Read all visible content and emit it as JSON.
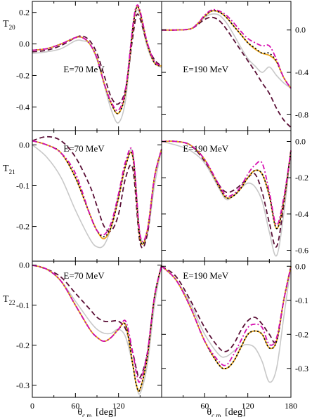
{
  "chart_data": {
    "type": "line",
    "x_axis": {
      "label": "θ",
      "label_sub": "c.m.",
      "label_unit": "[deg]",
      "range": [
        0,
        180
      ],
      "ticks": [
        0,
        60,
        120,
        180
      ],
      "tick_labels_left": [
        "0",
        "60",
        "120"
      ],
      "tick_labels_right": [
        "60",
        "120",
        "180"
      ]
    },
    "series_styles": [
      {
        "color": "#c8c8c8",
        "dash": "none"
      },
      {
        "color": "#5a0f36",
        "dash": "7,4"
      },
      {
        "color": "#e8a317",
        "dash": "none"
      },
      {
        "color": "#000000",
        "dash": "2,3"
      },
      {
        "color": "#d60fb0",
        "dash": "7,3,2,3"
      }
    ],
    "rows": [
      {
        "ylabel": "T",
        "ylabel_sub": "20",
        "panels": [
          {
            "energy": "E=70 MeV",
            "ylim": [
              -0.55,
              0.27
            ],
            "yticks": [
              0.2,
              0.0,
              -0.2,
              -0.4
            ],
            "ytick_labels": [
              "0.2",
              "0.0",
              "-0.2",
              "-0.4"
            ],
            "ytick_side": "left",
            "x": [
              0,
              20,
              40,
              60,
              70,
              80,
              90,
              100,
              110,
              120,
              130,
              140,
              145,
              150,
              160,
              170,
              180
            ],
            "series": [
              [
                -0.06,
                -0.05,
                -0.03,
                0.02,
                0.02,
                0.0,
                -0.1,
                -0.26,
                -0.42,
                -0.5,
                -0.35,
                0.1,
                0.21,
                0.18,
                -0.02,
                -0.12,
                -0.15
              ],
              [
                -0.05,
                -0.04,
                -0.01,
                0.04,
                0.05,
                0.02,
                -0.06,
                -0.2,
                -0.34,
                -0.38,
                -0.28,
                0.05,
                0.18,
                0.16,
                0.0,
                -0.1,
                -0.14
              ],
              [
                -0.04,
                -0.03,
                0.0,
                0.04,
                0.04,
                0.0,
                -0.09,
                -0.25,
                -0.38,
                -0.44,
                -0.3,
                0.1,
                0.23,
                0.2,
                0.0,
                -0.12,
                -0.14
              ],
              [
                -0.04,
                -0.03,
                0.0,
                0.04,
                0.04,
                0.0,
                -0.09,
                -0.25,
                -0.38,
                -0.44,
                -0.3,
                0.1,
                0.23,
                0.2,
                0.0,
                -0.12,
                -0.14
              ],
              [
                -0.04,
                -0.03,
                0.0,
                0.04,
                0.04,
                0.0,
                -0.09,
                -0.25,
                -0.37,
                -0.42,
                -0.28,
                0.12,
                0.24,
                0.21,
                0.01,
                -0.11,
                -0.14
              ]
            ]
          },
          {
            "energy": "E=190 MeV",
            "ylim": [
              -0.95,
              0.27
            ],
            "yticks": [
              0.0,
              -0.4,
              -0.8
            ],
            "ytick_labels": [
              "0.0",
              "-0.4",
              "-0.8"
            ],
            "ytick_side": "right",
            "x": [
              0,
              20,
              40,
              50,
              60,
              70,
              80,
              90,
              100,
              110,
              120,
              130,
              140,
              150,
              160,
              170,
              180
            ],
            "series": [
              [
                0.0,
                0.0,
                0.01,
                0.05,
                0.12,
                0.15,
                0.14,
                0.07,
                -0.04,
                -0.16,
                -0.27,
                -0.34,
                -0.4,
                -0.35,
                -0.43,
                -0.5,
                -0.55
              ],
              [
                0.0,
                0.0,
                0.01,
                0.05,
                0.1,
                0.12,
                0.09,
                0.01,
                -0.09,
                -0.19,
                -0.29,
                -0.39,
                -0.5,
                -0.6,
                -0.74,
                -0.85,
                -0.92
              ],
              [
                0.0,
                0.0,
                0.01,
                0.06,
                0.13,
                0.18,
                0.17,
                0.12,
                0.04,
                -0.04,
                -0.12,
                -0.18,
                -0.22,
                -0.24,
                -0.3,
                -0.45,
                -0.55
              ],
              [
                0.0,
                0.0,
                0.01,
                0.06,
                0.13,
                0.18,
                0.17,
                0.12,
                0.04,
                -0.04,
                -0.12,
                -0.17,
                -0.22,
                -0.22,
                -0.3,
                -0.45,
                -0.55
              ],
              [
                0.0,
                0.0,
                0.01,
                0.06,
                0.14,
                0.19,
                0.18,
                0.14,
                0.07,
                -0.01,
                -0.08,
                -0.12,
                -0.15,
                -0.15,
                -0.28,
                -0.45,
                -0.55
              ]
            ]
          }
        ]
      },
      {
        "ylabel": "T",
        "ylabel_sub": "21",
        "panels": [
          {
            "energy": "E=70 MeV",
            "ylim": [
              -0.285,
              0.035
            ],
            "yticks": [
              0.0,
              -0.1,
              -0.2
            ],
            "ytick_labels": [
              "0.0",
              "-0.1",
              "-0.2"
            ],
            "ytick_side": "left",
            "x": [
              0,
              20,
              40,
              60,
              80,
              90,
              100,
              110,
              120,
              130,
              140,
              150,
              160,
              170,
              180
            ],
            "series": [
              [
                0.0,
                -0.03,
                -0.08,
                -0.16,
                -0.23,
                -0.25,
                -0.245,
                -0.2,
                -0.12,
                -0.05,
                -0.02,
                -0.22,
                -0.22,
                -0.1,
                -0.01
              ],
              [
                0.01,
                0.02,
                0.01,
                -0.03,
                -0.1,
                -0.15,
                -0.2,
                -0.21,
                -0.17,
                -0.08,
                -0.06,
                -0.24,
                -0.22,
                -0.08,
                -0.01
              ],
              [
                0.01,
                0.0,
                -0.02,
                -0.08,
                -0.17,
                -0.21,
                -0.23,
                -0.2,
                -0.13,
                -0.05,
                -0.03,
                -0.23,
                -0.21,
                -0.08,
                -0.01
              ],
              [
                0.01,
                0.0,
                -0.02,
                -0.08,
                -0.17,
                -0.21,
                -0.225,
                -0.2,
                -0.13,
                -0.05,
                -0.03,
                -0.23,
                -0.21,
                -0.08,
                -0.01
              ],
              [
                0.01,
                0.0,
                -0.02,
                -0.07,
                -0.17,
                -0.21,
                -0.22,
                -0.19,
                -0.12,
                -0.04,
                -0.02,
                -0.22,
                -0.21,
                -0.08,
                -0.01
              ]
            ]
          },
          {
            "energy": "E=190 MeV",
            "ylim": [
              -0.66,
              0.06
            ],
            "yticks": [
              0.0,
              -0.2,
              -0.4,
              -0.6
            ],
            "ytick_labels": [
              "0.0",
              "-0.2",
              "-0.4",
              "-0.6"
            ],
            "ytick_side": "right",
            "x": [
              0,
              20,
              40,
              60,
              80,
              90,
              100,
              110,
              120,
              130,
              140,
              150,
              160,
              170,
              180
            ],
            "series": [
              [
                0.0,
                -0.02,
                -0.05,
                -0.12,
                -0.26,
                -0.32,
                -0.3,
                -0.26,
                -0.23,
                -0.25,
                -0.33,
                -0.5,
                -0.63,
                -0.4,
                -0.05
              ],
              [
                0.0,
                0.0,
                -0.02,
                -0.11,
                -0.24,
                -0.28,
                -0.27,
                -0.24,
                -0.2,
                -0.18,
                -0.28,
                -0.45,
                -0.58,
                -0.35,
                -0.05
              ],
              [
                0.0,
                0.0,
                -0.02,
                -0.1,
                -0.25,
                -0.31,
                -0.3,
                -0.26,
                -0.2,
                -0.16,
                -0.18,
                -0.3,
                -0.48,
                -0.33,
                -0.05
              ],
              [
                0.0,
                0.0,
                -0.02,
                -0.1,
                -0.25,
                -0.31,
                -0.3,
                -0.26,
                -0.2,
                -0.16,
                -0.18,
                -0.3,
                -0.48,
                -0.33,
                -0.05
              ],
              [
                0.0,
                0.0,
                -0.02,
                -0.1,
                -0.24,
                -0.3,
                -0.29,
                -0.25,
                -0.18,
                -0.13,
                -0.12,
                -0.28,
                -0.46,
                -0.31,
                -0.05
              ]
            ]
          }
        ]
      },
      {
        "ylabel": "T",
        "ylabel_sub": "22",
        "panels": [
          {
            "energy": "E=70 MeV",
            "ylim": [
              -0.33,
              0.01
            ],
            "yticks": [
              0.0,
              -0.1,
              -0.2,
              -0.3
            ],
            "ytick_labels": [
              "0.0",
              "-0.1",
              "-0.2",
              "-0.3"
            ],
            "ytick_side": "left",
            "x": [
              0,
              20,
              40,
              60,
              80,
              90,
              100,
              110,
              120,
              130,
              140,
              145,
              150,
              160,
              170,
              180
            ],
            "series": [
              [
                0.0,
                -0.01,
                -0.04,
                -0.09,
                -0.14,
                -0.16,
                -0.17,
                -0.17,
                -0.16,
                -0.18,
                -0.25,
                -0.3,
                -0.32,
                -0.25,
                -0.1,
                0.0
              ],
              [
                0.0,
                -0.01,
                -0.03,
                -0.07,
                -0.11,
                -0.13,
                -0.14,
                -0.14,
                -0.14,
                -0.16,
                -0.22,
                -0.26,
                -0.28,
                -0.22,
                -0.08,
                0.0
              ],
              [
                0.0,
                -0.01,
                -0.04,
                -0.1,
                -0.16,
                -0.18,
                -0.19,
                -0.18,
                -0.16,
                -0.15,
                -0.25,
                -0.3,
                -0.31,
                -0.23,
                -0.08,
                0.0
              ],
              [
                0.0,
                -0.01,
                -0.04,
                -0.1,
                -0.16,
                -0.18,
                -0.19,
                -0.18,
                -0.16,
                -0.15,
                -0.25,
                -0.3,
                -0.31,
                -0.23,
                -0.08,
                0.0
              ],
              [
                0.0,
                -0.01,
                -0.04,
                -0.1,
                -0.16,
                -0.18,
                -0.19,
                -0.18,
                -0.16,
                -0.14,
                -0.22,
                -0.27,
                -0.29,
                -0.22,
                -0.08,
                0.0
              ]
            ]
          },
          {
            "energy": "E=190 MeV",
            "ylim": [
              -0.385,
              0.015
            ],
            "yticks": [
              0.0,
              -0.1,
              -0.2,
              -0.3
            ],
            "ytick_labels": [
              "0.0",
              "-0.1",
              "-0.2",
              "-0.3"
            ],
            "ytick_side": "right",
            "x": [
              0,
              20,
              40,
              60,
              80,
              90,
              100,
              110,
              120,
              130,
              140,
              150,
              160,
              170,
              180
            ],
            "series": [
              [
                0.0,
                -0.04,
                -0.11,
                -0.2,
                -0.26,
                -0.265,
                -0.25,
                -0.235,
                -0.23,
                -0.24,
                -0.28,
                -0.34,
                -0.3,
                -0.15,
                0.0
              ],
              [
                0.0,
                -0.03,
                -0.1,
                -0.18,
                -0.24,
                -0.25,
                -0.23,
                -0.19,
                -0.16,
                -0.15,
                -0.17,
                -0.2,
                -0.22,
                -0.1,
                0.0
              ],
              [
                0.0,
                -0.04,
                -0.12,
                -0.22,
                -0.29,
                -0.3,
                -0.28,
                -0.24,
                -0.2,
                -0.19,
                -0.2,
                -0.24,
                -0.22,
                -0.1,
                0.0
              ],
              [
                0.0,
                -0.04,
                -0.12,
                -0.22,
                -0.29,
                -0.3,
                -0.28,
                -0.24,
                -0.2,
                -0.19,
                -0.2,
                -0.24,
                -0.22,
                -0.1,
                0.0
              ],
              [
                0.0,
                -0.04,
                -0.12,
                -0.22,
                -0.28,
                -0.29,
                -0.26,
                -0.22,
                -0.18,
                -0.17,
                -0.18,
                -0.23,
                -0.21,
                -0.1,
                0.0
              ]
            ]
          }
        ]
      }
    ]
  }
}
